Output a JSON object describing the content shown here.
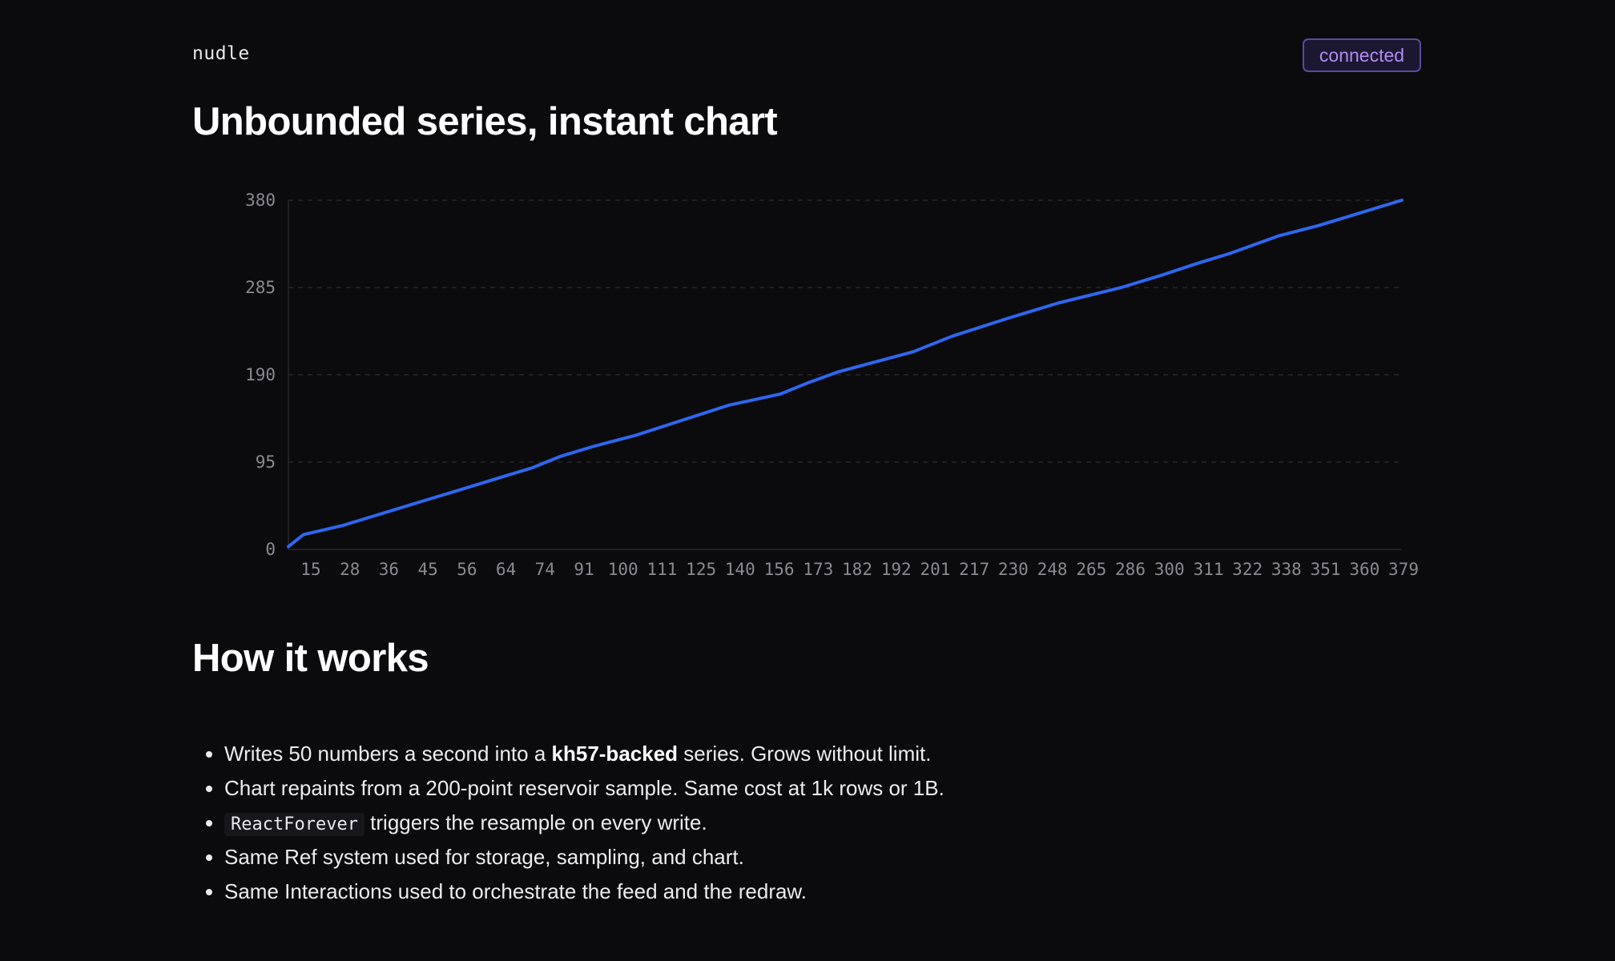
{
  "app": {
    "brand": "nudle",
    "status": "connected"
  },
  "page": {
    "title": "Unbounded series, instant chart"
  },
  "chart_data": {
    "type": "line",
    "title": "",
    "xlabel": "",
    "ylabel": "",
    "ylim": [
      0,
      380
    ],
    "xlim": [
      10,
      379
    ],
    "y_ticks": [
      "0",
      "95",
      "190",
      "285",
      "380"
    ],
    "x_ticks": [
      "15",
      "28",
      "36",
      "45",
      "56",
      "64",
      "74",
      "91",
      "100",
      "111",
      "125",
      "140",
      "156",
      "173",
      "182",
      "192",
      "201",
      "217",
      "230",
      "248",
      "265",
      "286",
      "300",
      "311",
      "322",
      "338",
      "351",
      "360",
      "379"
    ],
    "grid": true,
    "legend": "none",
    "color": "#2f66ee",
    "series": [
      {
        "x": [
          10,
          15,
          28,
          36,
          45,
          56,
          64,
          74,
          91,
          100,
          111,
          125,
          140,
          156,
          173,
          182,
          192,
          201,
          217,
          230,
          248,
          265,
          286,
          300,
          311,
          322,
          338,
          351,
          360,
          379
        ],
        "y": [
          3,
          16,
          26,
          34,
          43,
          54,
          62,
          72,
          89,
          101,
          112,
          124,
          140,
          157,
          169,
          181,
          193,
          201,
          215,
          232,
          251,
          268,
          285,
          299,
          311,
          322,
          341,
          352,
          361,
          380
        ]
      }
    ]
  },
  "how": {
    "title": "How it works",
    "items": [
      {
        "pre": "Writes 50 numbers a second into a ",
        "bold": "kh57-backed",
        "post": " series. Grows without limit."
      },
      {
        "text": "Chart repaints from a 200-point reservoir sample. Same cost at 1k rows or 1B."
      },
      {
        "code": "ReactForever",
        "post": " triggers the resample on every write."
      },
      {
        "text": "Same Ref system used for storage, sampling, and chart."
      },
      {
        "text": "Same Interactions used to orchestrate the feed and the redraw."
      }
    ]
  }
}
